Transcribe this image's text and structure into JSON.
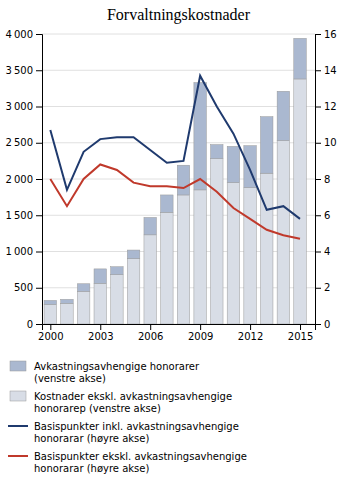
{
  "chart_data": {
    "type": "bar",
    "title": "Forvaltningskostnader",
    "stacked": true,
    "grid": true,
    "x": [
      2000,
      2001,
      2002,
      2003,
      2004,
      2005,
      2006,
      2007,
      2008,
      2009,
      2010,
      2011,
      2012,
      2013,
      2014,
      2015
    ],
    "xlim": [
      1999.5,
      2015.9
    ],
    "xticks": [
      2000,
      2003,
      2006,
      2009,
      2012,
      2015
    ],
    "ylim": [
      0,
      4000
    ],
    "yticks": [
      0,
      500,
      {
        "value": 1000,
        "label": "1 000"
      },
      {
        "value": 1500,
        "label": "1 500"
      },
      {
        "value": 2000,
        "label": "2 000"
      },
      {
        "value": 2500,
        "label": "2 500"
      },
      {
        "value": 3000,
        "label": "3 000"
      },
      {
        "value": 3500,
        "label": "3 500"
      },
      {
        "value": 4000,
        "label": "4 000"
      }
    ],
    "y2lim": [
      0,
      16
    ],
    "y2ticks": [
      0,
      2,
      4,
      6,
      8,
      10,
      12,
      14,
      16
    ],
    "series": [
      {
        "name": "Kostnader ekskl. avkastningsavhengige\nhonorarер (venstre akse)",
        "type": "bar",
        "color": "#d8dde6",
        "values": [
          270,
          285,
          450,
          560,
          680,
          900,
          1230,
          1540,
          1780,
          1850,
          2280,
          1950,
          1880,
          2080,
          2530,
          3380
        ]
      },
      {
        "name": "Avkastningsavhengige honorarer\n(venstre akse)",
        "type": "bar",
        "color": "#aab8d0",
        "values": [
          55,
          55,
          105,
          200,
          110,
          120,
          240,
          240,
          410,
          1480,
          195,
          500,
          580,
          780,
          680,
          560
        ]
      },
      {
        "name": "Basispunkter inkl. avkastningsavhengige\nhonorarar (høyre akse)",
        "type": "line",
        "axis": "y2",
        "color": "#1f3a6e",
        "values": [
          10.7,
          7.4,
          9.5,
          10.2,
          10.3,
          10.3,
          9.6,
          8.9,
          9.0,
          13.7,
          12.0,
          10.5,
          8.5,
          6.3,
          6.5,
          5.8
        ]
      },
      {
        "name": "Basispunkter ekskl. avkastningsavhengige\nhonorarar (høyre akse)",
        "type": "line",
        "axis": "y2",
        "color": "#c0392b",
        "values": [
          8.0,
          6.5,
          8.0,
          8.8,
          8.5,
          7.8,
          7.6,
          7.6,
          7.5,
          8.0,
          7.3,
          6.4,
          5.8,
          5.2,
          4.9,
          4.7
        ]
      }
    ]
  }
}
